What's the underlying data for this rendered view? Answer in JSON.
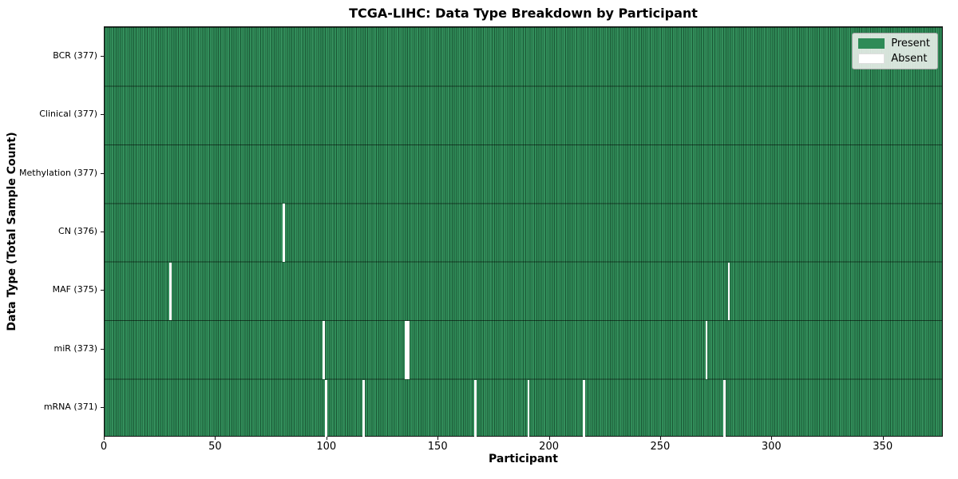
{
  "chart_data": {
    "type": "heatmap",
    "title": "TCGA-LIHC: Data Type Breakdown by Participant",
    "xlabel": "Participant",
    "ylabel": "Data Type (Total Sample Count)",
    "x_range": [
      0,
      377
    ],
    "x_ticks": [
      0,
      50,
      100,
      150,
      200,
      250,
      300,
      350
    ],
    "n_participants": 377,
    "grid": false,
    "rows": [
      {
        "name": "BCR",
        "label": "BCR (377)",
        "present_count": 377,
        "absent_participants": []
      },
      {
        "name": "Clinical",
        "label": "Clinical (377)",
        "present_count": 377,
        "absent_participants": []
      },
      {
        "name": "Methylation",
        "label": "Methylation (377)",
        "present_count": 377,
        "absent_participants": []
      },
      {
        "name": "CN",
        "label": "CN (376)",
        "present_count": 376,
        "absent_participants": [
          80
        ]
      },
      {
        "name": "MAF",
        "label": "MAF (375)",
        "present_count": 375,
        "absent_participants": [
          29,
          280
        ]
      },
      {
        "name": "miR",
        "label": "miR (373)",
        "present_count": 373,
        "absent_participants": [
          98,
          135,
          136,
          270
        ]
      },
      {
        "name": "mRNA",
        "label": "mRNA (371)",
        "present_count": 371,
        "absent_participants": [
          99,
          116,
          166,
          190,
          215,
          278
        ]
      }
    ],
    "legend": {
      "position": "upper-right",
      "items": [
        {
          "label": "Present",
          "color": "#2e8b57"
        },
        {
          "label": "Absent",
          "color": "#ffffff"
        }
      ]
    },
    "colors": {
      "present": "#2e8b57",
      "absent": "#ffffff",
      "cell_edge": "#0a2a18",
      "legend_bg": "#eef1ee"
    }
  }
}
